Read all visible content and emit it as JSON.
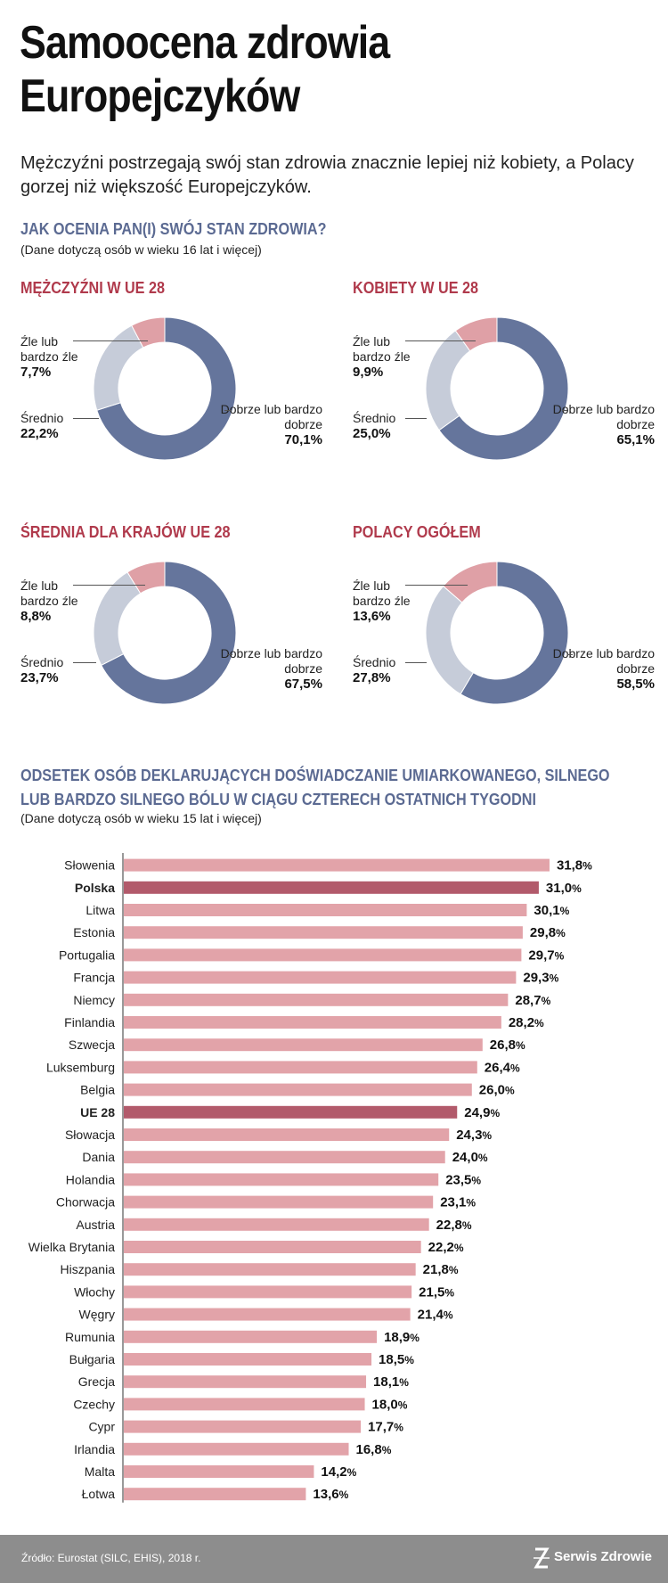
{
  "header": {
    "title": "Samoocena zdrowia Europejczyków",
    "subtitle": "Mężczyźni postrzegają swój stan zdrowia znacznie lepiej niż kobiety, a Polacy gorzej niż większość Europejczyków."
  },
  "section1": {
    "heading": "JAK OCENIA PAN(I) SWÓJ STAN ZDROWIA?",
    "note": "(Dane dotyczą osób w wieku 16 lat i więcej)"
  },
  "colors": {
    "good": "#65759c",
    "medium": "#c6ccd9",
    "bad": "#dfa0a6",
    "bar": "#e2a3a9",
    "bar_highlight": "#b25a6b",
    "heading_blue": "#5b6a92",
    "heading_red": "#b03a4c"
  },
  "donuts": [
    {
      "title": "MĘŻCZYŹNI W UE 28",
      "bad_label": "Źle lub bardzo źle",
      "bad": "7,7",
      "mid_label": "Średnio",
      "mid": "22,2",
      "good_label": "Dobrze lub bardzo dobrze",
      "good": "70,1"
    },
    {
      "title": "KOBIETY W UE 28",
      "bad_label": "Źle lub bardzo źle",
      "bad": "9,9",
      "mid_label": "Średnio",
      "mid": "25,0",
      "good_label": "Dobrze lub bardzo dobrze",
      "good": "65,1"
    },
    {
      "title": "ŚREDNIA DLA KRAJÓW UE 28",
      "bad_label": "Źle lub bardzo źle",
      "bad": "8,8",
      "mid_label": "Średnio",
      "mid": "23,7",
      "good_label": "Dobrze lub bardzo dobrze",
      "good": "67,5"
    },
    {
      "title": "POLACY OGÓŁEM",
      "bad_label": "Źle lub bardzo źle",
      "bad": "13,6",
      "mid_label": "Średnio",
      "mid": "27,8",
      "good_label": "Dobrze lub bardzo dobrze",
      "good": "58,5"
    }
  ],
  "pct_sign": "%",
  "section2": {
    "heading_line1": "ODSETEK OSÓB DEKLARUJĄCYCH DOŚWIADCZANIE UMIARKOWANEGO, SILNEGO",
    "heading_line2": "LUB BARDZO SILNEGO BÓLU W CIĄGU CZTERECH OSTATNICH TYGODNI",
    "note": "(Dane dotyczą osób w wieku 15 lat i więcej)"
  },
  "chart_data": [
    {
      "type": "pie",
      "title": "MĘŻCZYŹNI W UE 28",
      "categories": [
        "Dobrze lub bardzo dobrze",
        "Średnio",
        "Źle lub bardzo źle"
      ],
      "values": [
        70.1,
        22.2,
        7.7
      ]
    },
    {
      "type": "pie",
      "title": "KOBIETY W UE 28",
      "categories": [
        "Dobrze lub bardzo dobrze",
        "Średnio",
        "Źle lub bardzo źle"
      ],
      "values": [
        65.1,
        25.0,
        9.9
      ]
    },
    {
      "type": "pie",
      "title": "ŚREDNIA DLA KRAJÓW UE 28",
      "categories": [
        "Dobrze lub bardzo dobrze",
        "Średnio",
        "Źle lub bardzo źle"
      ],
      "values": [
        67.5,
        23.7,
        8.8
      ]
    },
    {
      "type": "pie",
      "title": "POLACY OGÓŁEM",
      "categories": [
        "Dobrze lub bardzo dobrze",
        "Średnio",
        "Źle lub bardzo źle"
      ],
      "values": [
        58.5,
        27.8,
        13.6
      ]
    },
    {
      "type": "bar",
      "orientation": "horizontal",
      "title": "ODSETEK OSÓB DEKLARUJĄCYCH DOŚWIADCZANIE UMIARKOWANEGO, SILNEGO LUB BARDZO SILNEGO BÓLU W CIĄGU CZTERECH OSTATNICH TYGODNI",
      "categories": [
        "Słowenia",
        "Polska",
        "Litwa",
        "Estonia",
        "Portugalia",
        "Francja",
        "Niemcy",
        "Finlandia",
        "Szwecja",
        "Luksemburg",
        "Belgia",
        "UE 28",
        "Słowacja",
        "Dania",
        "Holandia",
        "Chorwacja",
        "Austria",
        "Wielka Brytania",
        "Hiszpania",
        "Włochy",
        "Węgry",
        "Rumunia",
        "Bułgaria",
        "Grecja",
        "Czechy",
        "Cypr",
        "Irlandia",
        "Malta",
        "Łotwa"
      ],
      "values": [
        31.8,
        31.0,
        30.1,
        29.8,
        29.7,
        29.3,
        28.7,
        28.2,
        26.8,
        26.4,
        26.0,
        24.9,
        24.3,
        24.0,
        23.5,
        23.1,
        22.8,
        22.2,
        21.8,
        21.5,
        21.4,
        18.9,
        18.5,
        18.1,
        18.0,
        17.7,
        16.8,
        14.2,
        13.6
      ],
      "value_labels": [
        "31,8",
        "31,0",
        "30,1",
        "29,8",
        "29,7",
        "29,3",
        "28,7",
        "28,2",
        "26,8",
        "26,4",
        "26,0",
        "24,9",
        "24,3",
        "24,0",
        "23,5",
        "23,1",
        "22,8",
        "22,2",
        "21,8",
        "21,5",
        "21,4",
        "18,9",
        "18,5",
        "18,1",
        "18,0",
        "17,7",
        "16,8",
        "14,2",
        "13,6"
      ],
      "highlighted": [
        "Polska",
        "UE 28"
      ],
      "grid": false
    }
  ],
  "footer": {
    "source": "Źródło: Eurostat (SILC, EHIS), 2018 r.",
    "brand": "Serwis Zdrowie",
    "brand_icon": "serwis-zdrowie-logo"
  }
}
